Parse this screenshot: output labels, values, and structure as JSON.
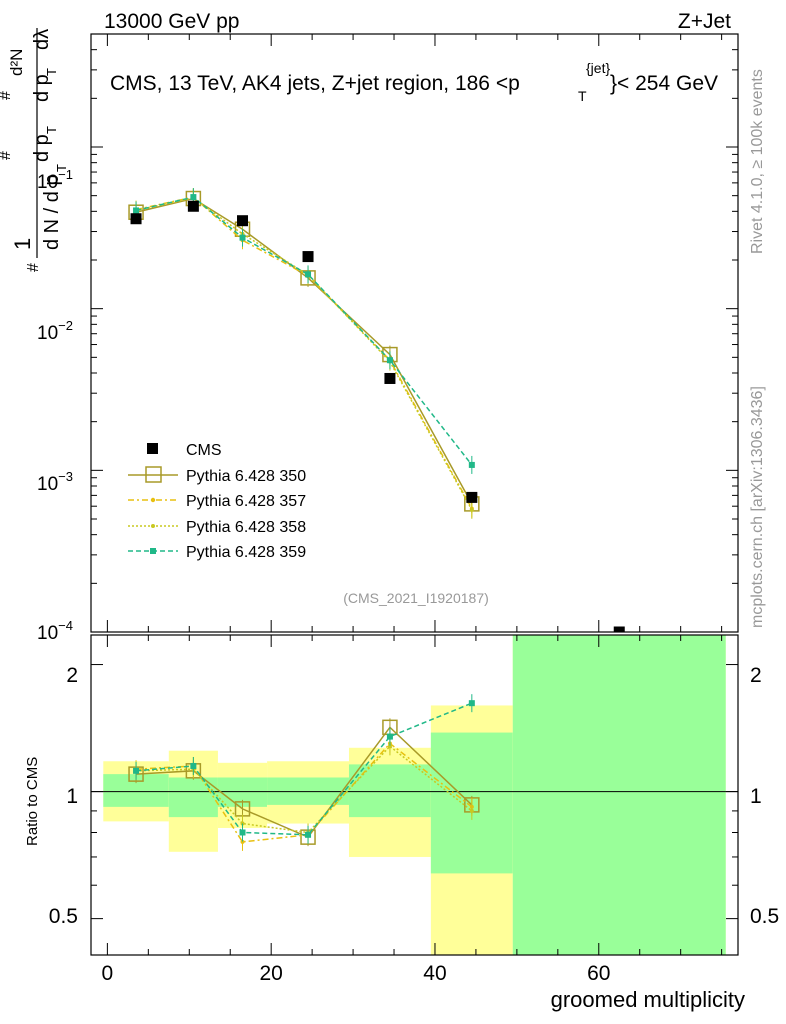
{
  "header": {
    "left_label": "13000 GeV pp",
    "right_label": "Z+Jet",
    "title_main": "CMS, 13 TeV, AK4 jets, Z+jet region, 186 <p",
    "title_sup": "{jet}",
    "title_sub": "T",
    "title_tail": "}< 254 GeV",
    "side_text_top": "Rivet 4.1.0, ≥ 100k events",
    "side_text_bottom": "mcplots.cern.ch [arXiv:1306.3436]",
    "analysis_id": "(CMS_2021_I1920187)"
  },
  "ylabel_main": {
    "hash1": "#",
    "one": "1",
    "dN": "d N / d p",
    "dN_sub": "T",
    "hash2": "#",
    "dpt": "d p",
    "dpt_sub": "T",
    "d2N": "d²N",
    "hash3": "#",
    "dpt2": "d p",
    "dpt2_sub": "T",
    "dlambda": "dλ"
  },
  "main_ticks": {
    "m1": "10",
    "m1_exp": "−1",
    "m2": "10",
    "m2_exp": "−2",
    "m3": "10",
    "m3_exp": "−3",
    "m4": "10",
    "m4_exp": "−4"
  },
  "ratio_ticks": {
    "r2": "2",
    "r1": "1",
    "r05": "0.5",
    "r2b": "2",
    "r1b": "1",
    "r05b": "0.5"
  },
  "x_ticks": {
    "x0": "0",
    "x20": "20",
    "x40": "40",
    "x60": "60"
  },
  "xlabel": "groomed multiplicity",
  "ratio_ylabel": "Ratio to CMS",
  "legend": {
    "cms": "CMS",
    "s350": "Pythia 6.428 350",
    "s357": "Pythia 6.428 357",
    "s358": "Pythia 6.428 358",
    "s359": "Pythia 6.428 359"
  },
  "colors": {
    "data": "#000000",
    "s350": "#a89a28",
    "s357": "#e8c010",
    "s358": "#c8c820",
    "s359": "#20b888",
    "band_yellow": "#ffff99",
    "band_green": "#99ff99"
  },
  "chart_data": {
    "type": "scatter",
    "x_axis": {
      "label": "groomed multiplicity",
      "range": [
        -2,
        77
      ]
    },
    "y_axis": {
      "scale": "log",
      "range": [
        0.0001,
        0.5
      ]
    },
    "ratio_y_axis": {
      "scale": "log",
      "range": [
        0.41,
        2.35
      ],
      "label": "Ratio to CMS"
    },
    "data": {
      "name": "CMS",
      "x": [
        3.5,
        10.5,
        16.5,
        24.5,
        34.5,
        44.5,
        62.5
      ],
      "y": [
        0.036,
        0.043,
        0.035,
        0.021,
        0.0037,
        0.00068,
        0.0001
      ]
    },
    "series": [
      {
        "name": "Pythia 6.428 350",
        "x": [
          3.5,
          10.5,
          16.5,
          24.5,
          34.5,
          44.5
        ],
        "y": [
          0.0395,
          0.048,
          0.031,
          0.0155,
          0.0052,
          0.00062
        ],
        "ratio": [
          1.1,
          1.12,
          0.91,
          0.78,
          1.42,
          0.93
        ]
      },
      {
        "name": "Pythia 6.428 357",
        "x": [
          3.5,
          10.5,
          16.5,
          24.5,
          34.5,
          44.5
        ],
        "y": [
          0.041,
          0.049,
          0.0265,
          0.016,
          0.0048,
          0.00058
        ],
        "ratio": [
          1.13,
          1.15,
          0.76,
          0.79,
          1.3,
          0.92
        ]
      },
      {
        "name": "Pythia 6.428 358",
        "x": [
          3.5,
          10.5,
          16.5,
          24.5,
          34.5,
          44.5
        ],
        "y": [
          0.0405,
          0.0485,
          0.029,
          0.0162,
          0.0047,
          0.00057
        ],
        "ratio": [
          1.12,
          1.13,
          0.84,
          0.8,
          1.28,
          0.9
        ]
      },
      {
        "name": "Pythia 6.428 359",
        "x": [
          3.5,
          10.5,
          16.5,
          24.5,
          34.5,
          44.5
        ],
        "y": [
          0.0405,
          0.049,
          0.0275,
          0.0163,
          0.0048,
          0.00108
        ],
        "ratio": [
          1.12,
          1.15,
          0.8,
          0.79,
          1.35,
          1.62
        ]
      }
    ],
    "bands": [
      {
        "x_range": [
          -0.5,
          7.5
        ],
        "yellow": [
          0.85,
          1.18
        ],
        "green": [
          0.92,
          1.1
        ]
      },
      {
        "x_range": [
          7.5,
          13.5
        ],
        "yellow": [
          0.72,
          1.25
        ],
        "green": [
          0.87,
          1.08
        ]
      },
      {
        "x_range": [
          13.5,
          19.5
        ],
        "yellow": [
          0.82,
          1.17
        ],
        "green": [
          0.92,
          1.08
        ]
      },
      {
        "x_range": [
          19.5,
          29.5
        ],
        "yellow": [
          0.84,
          1.18
        ],
        "green": [
          0.93,
          1.08
        ]
      },
      {
        "x_range": [
          29.5,
          39.5
        ],
        "yellow": [
          0.7,
          1.27
        ],
        "green": [
          0.87,
          1.16
        ]
      },
      {
        "x_range": [
          39.5,
          49.5
        ],
        "yellow": [
          0.41,
          1.6
        ],
        "green": [
          0.64,
          1.38
        ]
      },
      {
        "x_range": [
          49.5,
          75.5
        ],
        "yellow": [
          0.41,
          2.35
        ],
        "green": [
          0.41,
          2.35
        ]
      }
    ]
  }
}
